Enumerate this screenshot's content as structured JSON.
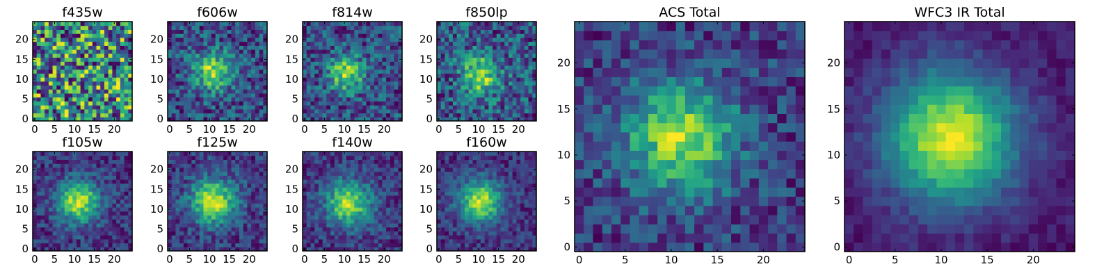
{
  "chart_data": {
    "type": "heatmap",
    "colormap": [
      "#440154",
      "#482878",
      "#3e4989",
      "#31688e",
      "#26828e",
      "#1f9e89",
      "#35b779",
      "#6ece58",
      "#b5de2b",
      "#fde725"
    ],
    "grid_size": 25,
    "panels": [
      {
        "id": "f435w",
        "title": "f435w",
        "xticks": [
          0,
          5,
          10,
          15,
          20
        ],
        "yticks": [
          0,
          5,
          10,
          15,
          20
        ],
        "xlim": [
          0,
          25
        ],
        "ylim": [
          0,
          25
        ],
        "source_center": [
          11.5,
          12.5
        ],
        "source_width": 4.0,
        "source_strength": 0.0,
        "noise_level": 1.0,
        "background_level": 0.5,
        "seed": 11
      },
      {
        "id": "f606w",
        "title": "f606w",
        "xticks": [
          0,
          5,
          10,
          15,
          20
        ],
        "yticks": [
          0,
          5,
          10,
          15,
          20
        ],
        "xlim": [
          0,
          25
        ],
        "ylim": [
          0,
          25
        ],
        "source_center": [
          11.5,
          12.5
        ],
        "source_width": 3.4,
        "source_strength": 0.75,
        "noise_level": 0.32,
        "background_level": 0.3,
        "seed": 23
      },
      {
        "id": "f814w",
        "title": "f814w",
        "xticks": [
          0,
          5,
          10,
          15,
          20
        ],
        "yticks": [
          0,
          5,
          10,
          15,
          20
        ],
        "xlim": [
          0,
          25
        ],
        "ylim": [
          0,
          25
        ],
        "source_center": [
          11.0,
          12.0
        ],
        "source_width": 3.2,
        "source_strength": 0.75,
        "noise_level": 0.32,
        "background_level": 0.3,
        "seed": 37
      },
      {
        "id": "f850lp",
        "title": "f850lp",
        "xticks": [
          0,
          5,
          10,
          15,
          20
        ],
        "yticks": [
          0,
          5,
          10,
          15,
          20
        ],
        "xlim": [
          0,
          25
        ],
        "ylim": [
          0,
          25
        ],
        "source_center": [
          11.0,
          11.5
        ],
        "source_width": 3.4,
        "source_strength": 0.72,
        "noise_level": 0.36,
        "background_level": 0.3,
        "seed": 41
      },
      {
        "id": "f105w",
        "title": "f105w",
        "xticks": [
          0,
          5,
          10,
          15,
          20
        ],
        "yticks": [
          0,
          5,
          10,
          15,
          20
        ],
        "xlim": [
          0,
          25
        ],
        "ylim": [
          0,
          25
        ],
        "source_center": [
          11.5,
          12.5
        ],
        "source_width": 3.8,
        "source_strength": 0.85,
        "noise_level": 0.2,
        "background_level": 0.25,
        "seed": 53
      },
      {
        "id": "f125w",
        "title": "f125w",
        "xticks": [
          0,
          5,
          10,
          15,
          20
        ],
        "yticks": [
          0,
          5,
          10,
          15,
          20
        ],
        "xlim": [
          0,
          25
        ],
        "ylim": [
          0,
          25
        ],
        "source_center": [
          11.5,
          12.5
        ],
        "source_width": 4.0,
        "source_strength": 0.85,
        "noise_level": 0.2,
        "background_level": 0.25,
        "seed": 67
      },
      {
        "id": "f140w",
        "title": "f140w",
        "xticks": [
          0,
          5,
          10,
          15,
          20
        ],
        "yticks": [
          0,
          5,
          10,
          15,
          20
        ],
        "xlim": [
          0,
          25
        ],
        "ylim": [
          0,
          25
        ],
        "source_center": [
          11.5,
          12.0
        ],
        "source_width": 4.0,
        "source_strength": 0.85,
        "noise_level": 0.2,
        "background_level": 0.22,
        "seed": 79
      },
      {
        "id": "f160w",
        "title": "f160w",
        "xticks": [
          0,
          5,
          10,
          15,
          20
        ],
        "yticks": [
          0,
          5,
          10,
          15,
          20
        ],
        "xlim": [
          0,
          25
        ],
        "ylim": [
          0,
          25
        ],
        "source_center": [
          11.0,
          12.5
        ],
        "source_width": 3.8,
        "source_strength": 0.88,
        "noise_level": 0.18,
        "background_level": 0.18,
        "seed": 83
      },
      {
        "id": "acs-total",
        "title": "ACS Total",
        "xticks": [
          0,
          5,
          10,
          15,
          20
        ],
        "yticks": [
          0,
          5,
          10,
          15,
          20
        ],
        "xlim": [
          0,
          25
        ],
        "ylim": [
          0,
          25
        ],
        "source_center": [
          11.5,
          12.5
        ],
        "source_width": 4.2,
        "source_strength": 0.75,
        "noise_level": 0.2,
        "background_level": 0.32,
        "seed": 97
      },
      {
        "id": "wfc3-ir-total",
        "title": "WFC3 IR Total",
        "xticks": [
          0,
          5,
          10,
          15,
          20
        ],
        "yticks": [
          0,
          5,
          10,
          15,
          20
        ],
        "xlim": [
          0,
          25
        ],
        "ylim": [
          0,
          25
        ],
        "source_center": [
          11.5,
          12.5
        ],
        "source_width": 5.0,
        "source_strength": 0.92,
        "noise_level": 0.08,
        "background_level": 0.12,
        "seed": 101
      }
    ]
  }
}
